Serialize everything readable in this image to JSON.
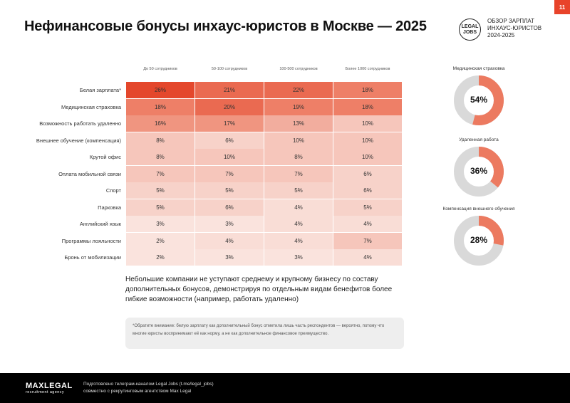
{
  "header": {
    "title": "Нефинансовые бонусы инхаус-юристов в Москве — 2025",
    "page_number": "11",
    "logo_line1": "LEGAL",
    "logo_line2": "JOBS",
    "survey_lines": [
      "ОБЗОР ЗАРПЛАТ",
      "ИНХАУС-ЮРИСТОВ",
      "2024-2025"
    ]
  },
  "table": {
    "columns": [
      "До 50 сотрудников",
      "50-100 сотрудников",
      "100-500 сотрудников",
      "Более 1000 сотрудников"
    ],
    "rows": [
      {
        "label": "Белая зарплата*",
        "values": [
          "26%",
          "21%",
          "22%",
          "18%"
        ]
      },
      {
        "label": "Медицинская страховка",
        "values": [
          "18%",
          "20%",
          "19%",
          "18%"
        ]
      },
      {
        "label": "Возможность работать удаленно",
        "values": [
          "16%",
          "17%",
          "13%",
          "10%"
        ]
      },
      {
        "label": "Внешнее обучение (компенсация)",
        "values": [
          "8%",
          "6%",
          "10%",
          "10%"
        ]
      },
      {
        "label": "Крутой офис",
        "values": [
          "8%",
          "10%",
          "8%",
          "10%"
        ]
      },
      {
        "label": "Оплата мобильной связи",
        "values": [
          "7%",
          "7%",
          "7%",
          "6%"
        ]
      },
      {
        "label": "Спорт",
        "values": [
          "5%",
          "5%",
          "5%",
          "6%"
        ]
      },
      {
        "label": "Парковка",
        "values": [
          "5%",
          "6%",
          "4%",
          "5%"
        ]
      },
      {
        "label": "Английский язык",
        "values": [
          "3%",
          "3%",
          "4%",
          "4%"
        ]
      },
      {
        "label": "Программы лояльности",
        "values": [
          "2%",
          "4%",
          "4%",
          "7%"
        ]
      },
      {
        "label": "Бронь от мобилизации",
        "values": [
          "2%",
          "3%",
          "3%",
          "4%"
        ]
      }
    ]
  },
  "donuts": [
    {
      "title": "Медицинская страховка",
      "value": "54%",
      "fraction": 0.54
    },
    {
      "title": "Удаленная работа",
      "value": "36%",
      "fraction": 0.36
    },
    {
      "title": "Компенсация внешнего обучения",
      "value": "28%",
      "fraction": 0.28
    }
  ],
  "note": "Небольшие компании не уступают среднему и крупному бизнесу по составу дополнительных бонусов, демонстрируя по отдельным видам бенефитов более гибкие возможности (например, работать удаленно)",
  "footnote": "*Обратите внимание: белую зарплату как дополнительный бонус отметила лишь часть респондентов — вероятно, потому что многие юристы воспринимают её как норму, а не как дополнительное финансовое преимущество.",
  "footer": {
    "brand": "MAXLEGAL",
    "brand_sub": "recruitment agency",
    "line1": "Подготовлено телеграм-каналом Legal Jobs (t.me/legal_jobs)",
    "line2": "совместно с рекрутинговым агентством Max Legal"
  },
  "colors": {
    "accent": "#e8432a",
    "donut_track": "#d9d9d9",
    "footer_bg": "#000000"
  }
}
